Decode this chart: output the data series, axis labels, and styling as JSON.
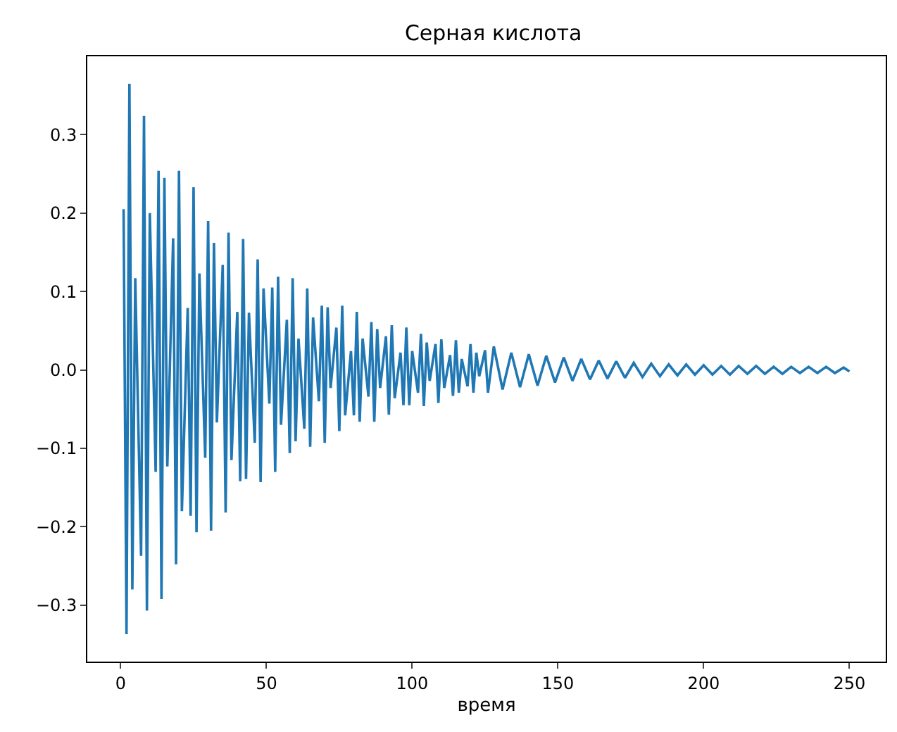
{
  "chart_data": {
    "type": "line",
    "title": "Серная кислота",
    "xlabel": "время",
    "x": [
      1,
      2,
      3,
      4,
      5,
      7,
      8,
      9,
      10,
      12,
      13,
      14,
      15,
      16,
      18,
      19,
      20,
      21,
      23,
      24,
      25,
      26,
      27,
      29,
      30,
      31,
      32,
      33,
      35,
      36,
      37,
      38,
      40,
      41,
      42,
      43,
      44,
      46,
      47,
      48,
      49,
      51,
      52,
      53,
      54,
      55,
      57,
      58,
      59,
      60,
      61,
      63,
      64,
      65,
      66,
      68,
      69,
      70,
      71,
      72,
      74,
      75,
      76,
      77,
      79,
      80,
      81,
      82,
      83,
      85,
      86,
      87,
      88,
      89,
      91,
      92,
      93,
      94,
      96,
      97,
      98,
      99,
      100,
      102,
      103,
      104,
      105,
      106,
      108,
      109,
      110,
      111,
      113,
      114,
      115,
      116,
      117,
      119,
      120,
      121,
      122,
      123,
      125,
      126,
      128,
      131,
      134,
      137,
      140,
      143,
      146,
      149,
      152,
      155,
      158,
      161,
      164,
      167,
      170,
      173,
      176,
      179,
      182,
      185,
      188,
      191,
      194,
      197,
      200,
      203,
      206,
      209,
      212,
      215,
      218,
      221,
      224,
      227,
      230,
      233,
      236,
      239,
      242,
      245,
      248,
      250
    ],
    "series": [
      {
        "color": "#1f77b4",
        "values": [
          0.205,
          -0.337,
          0.365,
          -0.28,
          0.117,
          -0.237,
          0.324,
          -0.307,
          0.2,
          -0.13,
          0.254,
          -0.292,
          0.245,
          -0.123,
          0.168,
          -0.248,
          0.254,
          -0.18,
          0.079,
          -0.186,
          0.233,
          -0.207,
          0.123,
          -0.112,
          0.19,
          -0.205,
          0.162,
          -0.067,
          0.134,
          -0.182,
          0.175,
          -0.115,
          0.074,
          -0.142,
          0.167,
          -0.139,
          0.073,
          -0.093,
          0.141,
          -0.143,
          0.104,
          -0.043,
          0.105,
          -0.13,
          0.119,
          -0.07,
          0.064,
          -0.106,
          0.117,
          -0.091,
          0.04,
          -0.075,
          0.104,
          -0.098,
          0.067,
          -0.04,
          0.082,
          -0.093,
          0.08,
          -0.023,
          0.054,
          -0.078,
          0.082,
          -0.058,
          0.024,
          -0.058,
          0.074,
          -0.066,
          0.04,
          -0.034,
          0.061,
          -0.066,
          0.052,
          -0.023,
          0.043,
          -0.057,
          0.057,
          -0.036,
          0.022,
          -0.045,
          0.054,
          -0.045,
          0.024,
          -0.029,
          0.046,
          -0.046,
          0.035,
          -0.014,
          0.033,
          -0.042,
          0.039,
          -0.023,
          0.019,
          -0.033,
          0.038,
          -0.029,
          0.014,
          -0.021,
          0.033,
          -0.029,
          0.022,
          -0.008,
          0.025,
          -0.029,
          0.03,
          -0.025,
          0.022,
          -0.022,
          0.02,
          -0.02,
          0.018,
          -0.016,
          0.016,
          -0.014,
          0.014,
          -0.012,
          0.012,
          -0.011,
          0.011,
          -0.01,
          0.009,
          -0.009,
          0.008,
          -0.008,
          0.007,
          -0.007,
          0.007,
          -0.006,
          0.006,
          -0.006,
          0.005,
          -0.006,
          0.005,
          -0.005,
          0.005,
          -0.005,
          0.004,
          -0.005,
          0.004,
          -0.004,
          0.004,
          -0.004,
          0.004,
          -0.004,
          0.003,
          -0.002
        ]
      }
    ],
    "xlim": [
      -11.45,
      262.45
    ],
    "ylim": [
      -0.372,
      0.4
    ],
    "xticks": [
      0,
      50,
      100,
      150,
      200,
      250
    ],
    "yticks": [
      {
        "value": -0.3,
        "label": "−0.3"
      },
      {
        "value": -0.2,
        "label": "−0.2"
      },
      {
        "value": -0.1,
        "label": "−0.1"
      },
      {
        "value": 0,
        "label": "0.0"
      },
      0.1,
      0.2,
      0.3
    ],
    "line_style": "solid"
  }
}
